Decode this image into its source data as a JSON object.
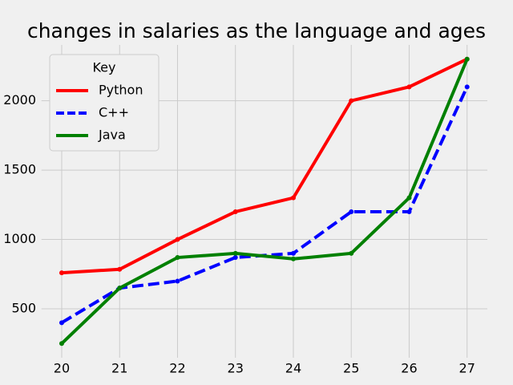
{
  "chart_data": {
    "type": "line",
    "title": "changes in salaries as the language and ages",
    "x": [
      20,
      21,
      22,
      23,
      24,
      25,
      26,
      27
    ],
    "series": [
      {
        "name": "Python",
        "color": "#ff0000",
        "dash": "solid",
        "values": [
          760,
          785,
          1000,
          1200,
          1300,
          2000,
          2100,
          2300
        ]
      },
      {
        "name": "C++",
        "color": "#0000ff",
        "dash": "dashed",
        "values": [
          400,
          650,
          700,
          870,
          900,
          1200,
          1200,
          2100
        ]
      },
      {
        "name": "Java",
        "color": "#008000",
        "dash": "solid",
        "values": [
          250,
          650,
          870,
          900,
          860,
          900,
          1300,
          2300
        ]
      }
    ],
    "xlim": [
      19.65,
      27.35
    ],
    "ylim": [
      147.5,
      2402.5
    ],
    "xticks": [
      20,
      21,
      22,
      23,
      24,
      25,
      26,
      27
    ],
    "yticks": [
      500,
      1000,
      1500,
      2000
    ],
    "grid": true,
    "legend_title": "Key",
    "legend_position": "upper-left"
  }
}
